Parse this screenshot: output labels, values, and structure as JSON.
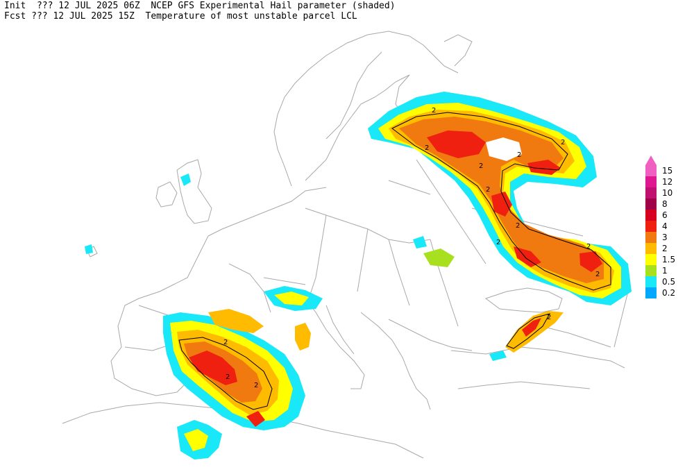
{
  "header": {
    "line1": "Init  ??? 12 JUL 2025 06Z  NCEP GFS Experimental Hail parameter (shaded)",
    "line2": "Fcst ??? 12 JUL 2025 15Z  Temperature of most unstable parcel LCL"
  },
  "contour_label": "2",
  "legend": [
    {
      "label": "15",
      "color": "#f060c0"
    },
    {
      "label": "12",
      "color": "#e01890"
    },
    {
      "label": "10",
      "color": "#c01070"
    },
    {
      "label": "8",
      "color": "#a00048"
    },
    {
      "label": "6",
      "color": "#d80020"
    },
    {
      "label": "4",
      "color": "#f02010"
    },
    {
      "label": "3",
      "color": "#f07a10"
    },
    {
      "label": "2",
      "color": "#ffbb00"
    },
    {
      "label": "1.5",
      "color": "#ffff00"
    },
    {
      "label": "1",
      "color": "#a8e020"
    },
    {
      "label": "0.5",
      "color": "#18e8f8"
    },
    {
      "label": "0.2",
      "color": "#00a8ff"
    }
  ]
}
